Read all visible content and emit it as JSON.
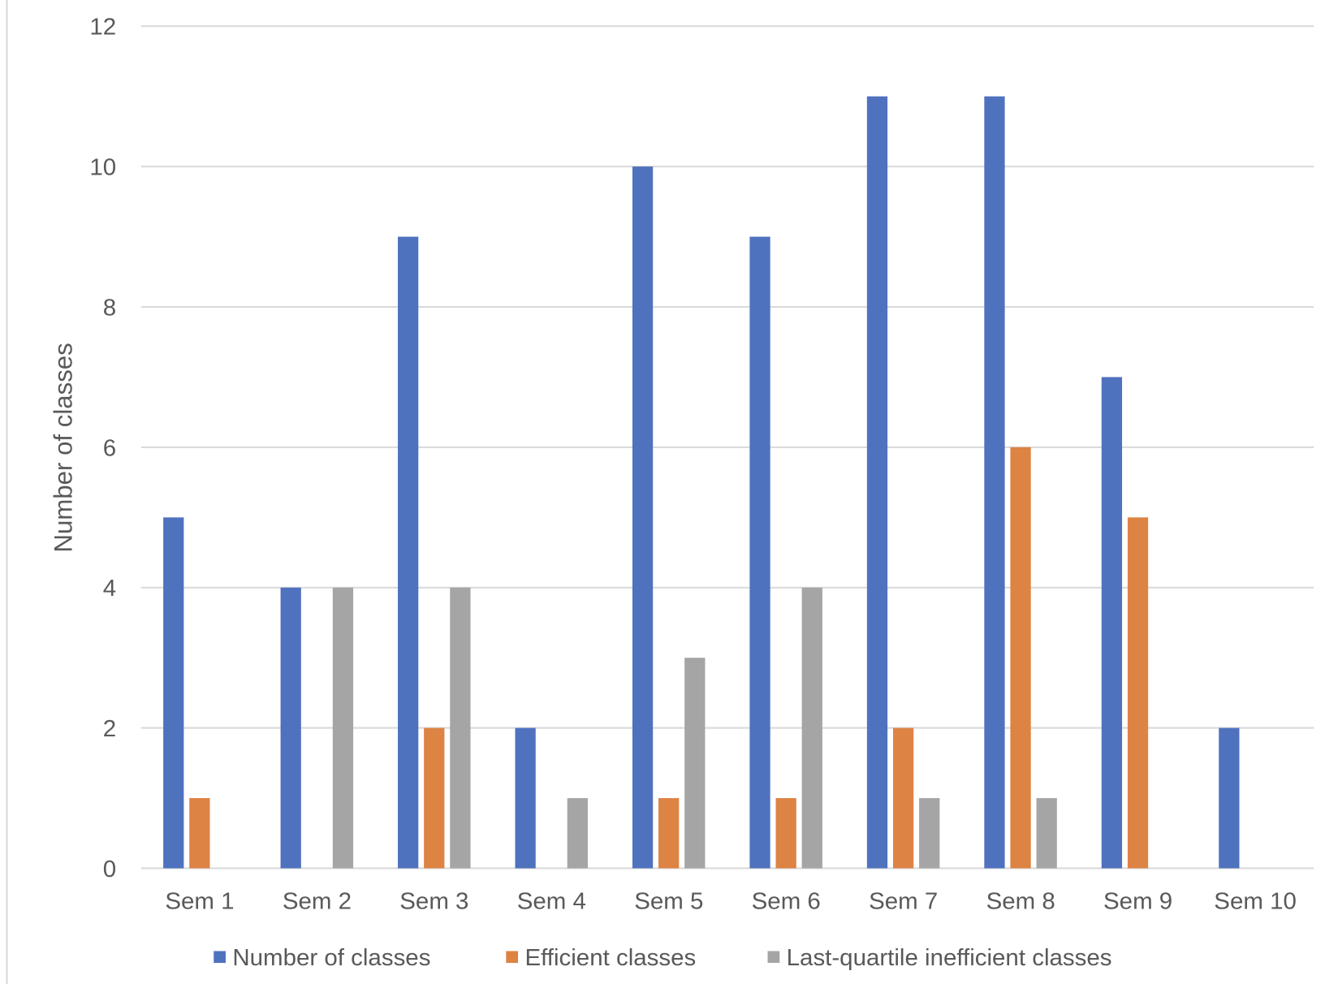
{
  "chart_data": {
    "type": "bar",
    "title": "",
    "xlabel": "",
    "ylabel": "Number of classes",
    "ylim": [
      0,
      12
    ],
    "yticks": [
      "0",
      "2",
      "4",
      "6",
      "8",
      "10",
      "12"
    ],
    "grid": true,
    "legend_position": "bottom",
    "categories": [
      "Sem 1",
      "Sem 2",
      "Sem 3",
      "Sem 4",
      "Sem 5",
      "Sem 6",
      "Sem 7",
      "Sem 8",
      "Sem 9",
      "Sem 10"
    ],
    "series": [
      {
        "name": "Number of classes",
        "color": "#4f72be",
        "values": [
          5,
          4,
          9,
          2,
          10,
          9,
          11,
          11,
          7,
          2
        ]
      },
      {
        "name": "Efficient classes",
        "color": "#dd8344",
        "values": [
          1,
          0,
          2,
          0,
          1,
          1,
          2,
          6,
          5,
          0
        ]
      },
      {
        "name": "Last-quartile inefficient classes",
        "color": "#a5a5a5",
        "values": [
          0,
          4,
          4,
          1,
          3,
          4,
          1,
          1,
          0,
          0
        ]
      }
    ]
  }
}
